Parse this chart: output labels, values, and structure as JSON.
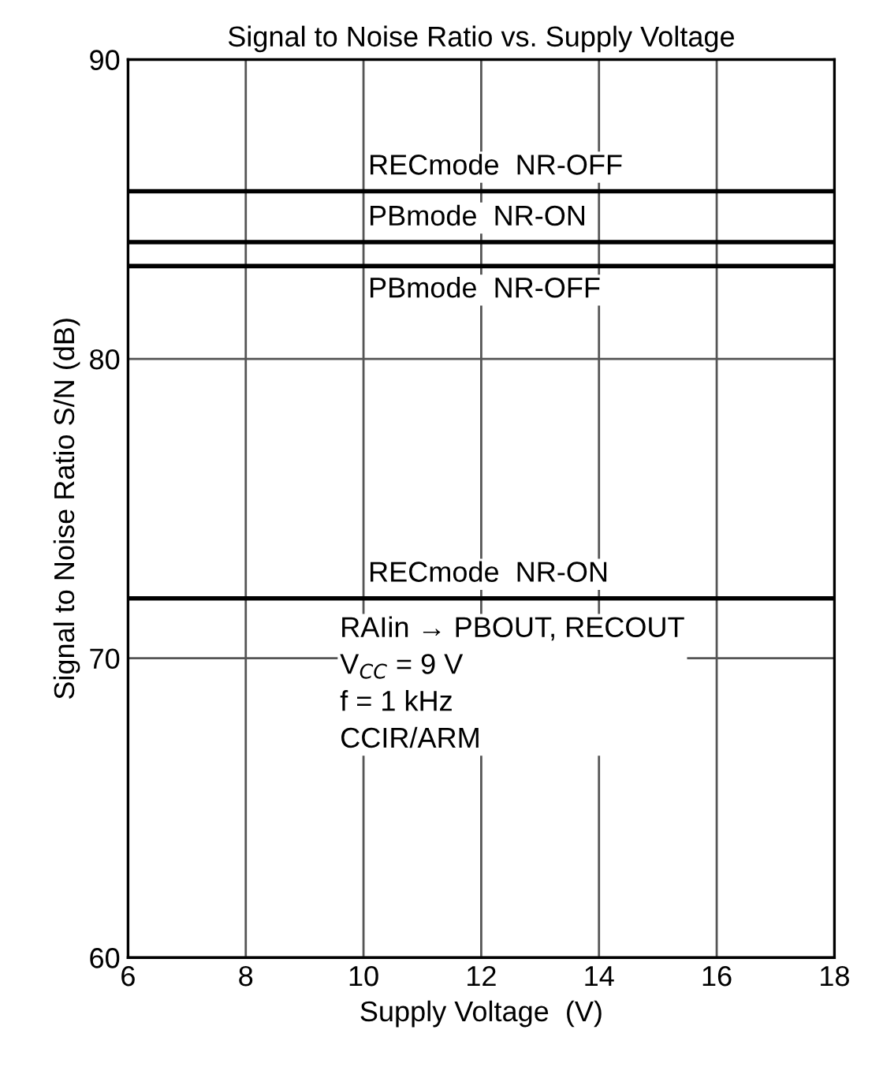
{
  "chart_data": {
    "type": "line",
    "title": "Signal to Noise Ratio vs. Supply Voltage",
    "xlabel": "Supply Voltage  (V)",
    "ylabel": "Signal to Noise Ratio S/N (dB)",
    "ref_lines": [
      {
        "axis": "y",
        "value": 85.6,
        "label": "RECmode  NR-OFF",
        "color": "#000000"
      },
      {
        "axis": "y",
        "value": 83.9,
        "label": "PBmode  NR-ON",
        "color": "#000000"
      },
      {
        "axis": "y",
        "value": 83.1,
        "label": "PBmode  NR-OFF",
        "color": "#000000"
      },
      {
        "axis": "y",
        "value": 72.0,
        "label": "RECmode  NR-ON",
        "color": "#000000"
      }
    ],
    "xlim": [
      6,
      18
    ],
    "ylim": [
      60,
      90
    ],
    "xticks": [
      6,
      8,
      10,
      12,
      14,
      16,
      18
    ],
    "yticks": [
      60,
      70,
      80,
      90
    ],
    "grid": true,
    "line_style": "solid",
    "annotations": [
      "RAIin → PBOUT, RECOUT\nV$_{CC}$ = 9 V\nf = 1 kHz\nCCIR/ARM"
    ]
  }
}
